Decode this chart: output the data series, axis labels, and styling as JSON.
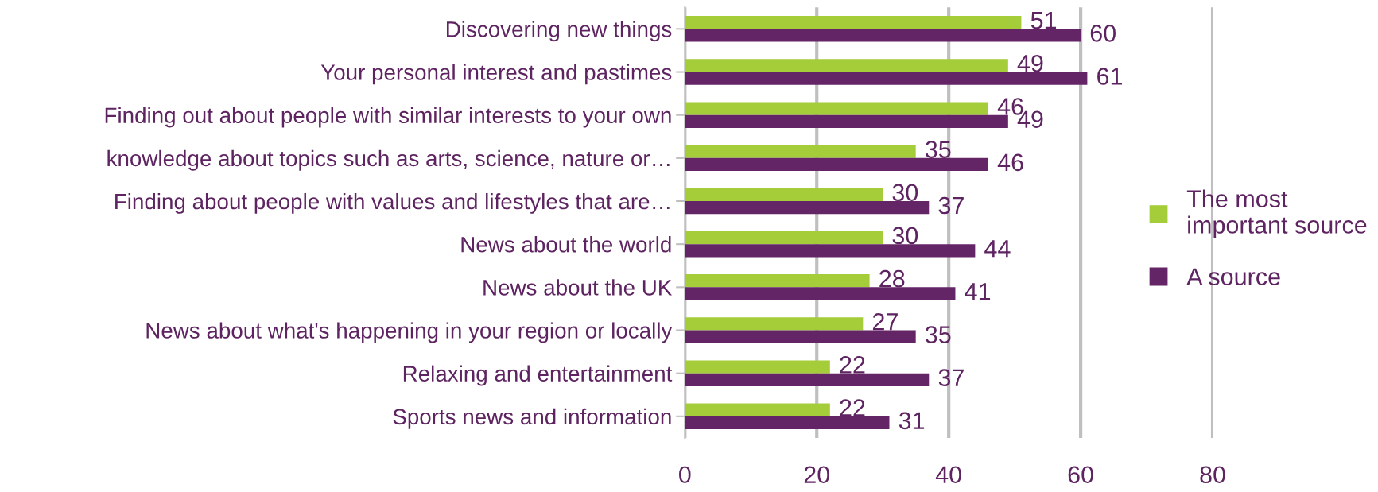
{
  "chart_data": {
    "type": "bar",
    "orientation": "horizontal",
    "categories": [
      "Discovering new things",
      "Your personal interest and pastimes",
      "Finding out about people with similar interests to your own",
      "knowledge about topics such as arts, science, nature or…",
      "Finding about people with values and lifestyles that are…",
      "News about the world",
      "News about the UK",
      "News about what's happening in your region or locally",
      "Relaxing and entertainment",
      "Sports news and information"
    ],
    "series": [
      {
        "name": "The most\nimportant source",
        "color": "#a5cd39",
        "values": [
          51,
          49,
          46,
          35,
          30,
          30,
          28,
          27,
          22,
          22
        ]
      },
      {
        "name": "A source",
        "color": "#632566",
        "values": [
          60,
          61,
          49,
          46,
          37,
          44,
          41,
          35,
          37,
          31
        ]
      }
    ],
    "xlim": [
      0,
      80
    ],
    "xticks": [
      0,
      20,
      40,
      60,
      80
    ],
    "grid": "x",
    "legend": "right",
    "data_labels": true
  }
}
